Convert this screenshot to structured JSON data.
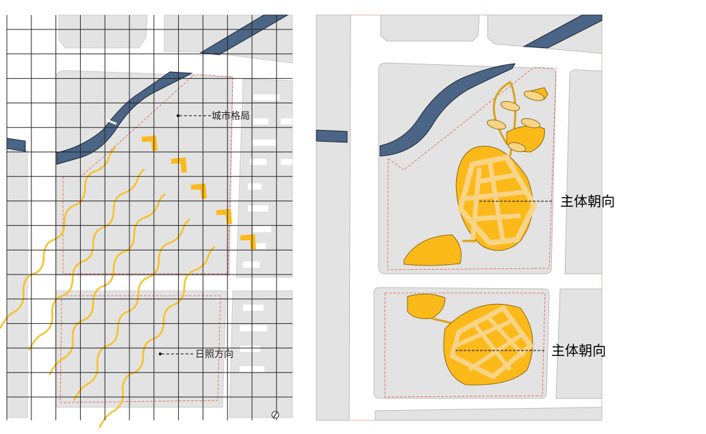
{
  "left_panel": {
    "label_urban_pattern": "城市格局",
    "label_sun_direction": "日照方向"
  },
  "right_panel": {
    "label_main_orientation_north": "主体朝向",
    "label_main_orientation_south": "主体朝向"
  },
  "colors": {
    "river": "#4a6585",
    "building": "#fbb91a",
    "building_light": "#f9d37e",
    "block": "#e3e3e3",
    "site_boundary": "#e06040",
    "grid": "#222222"
  }
}
